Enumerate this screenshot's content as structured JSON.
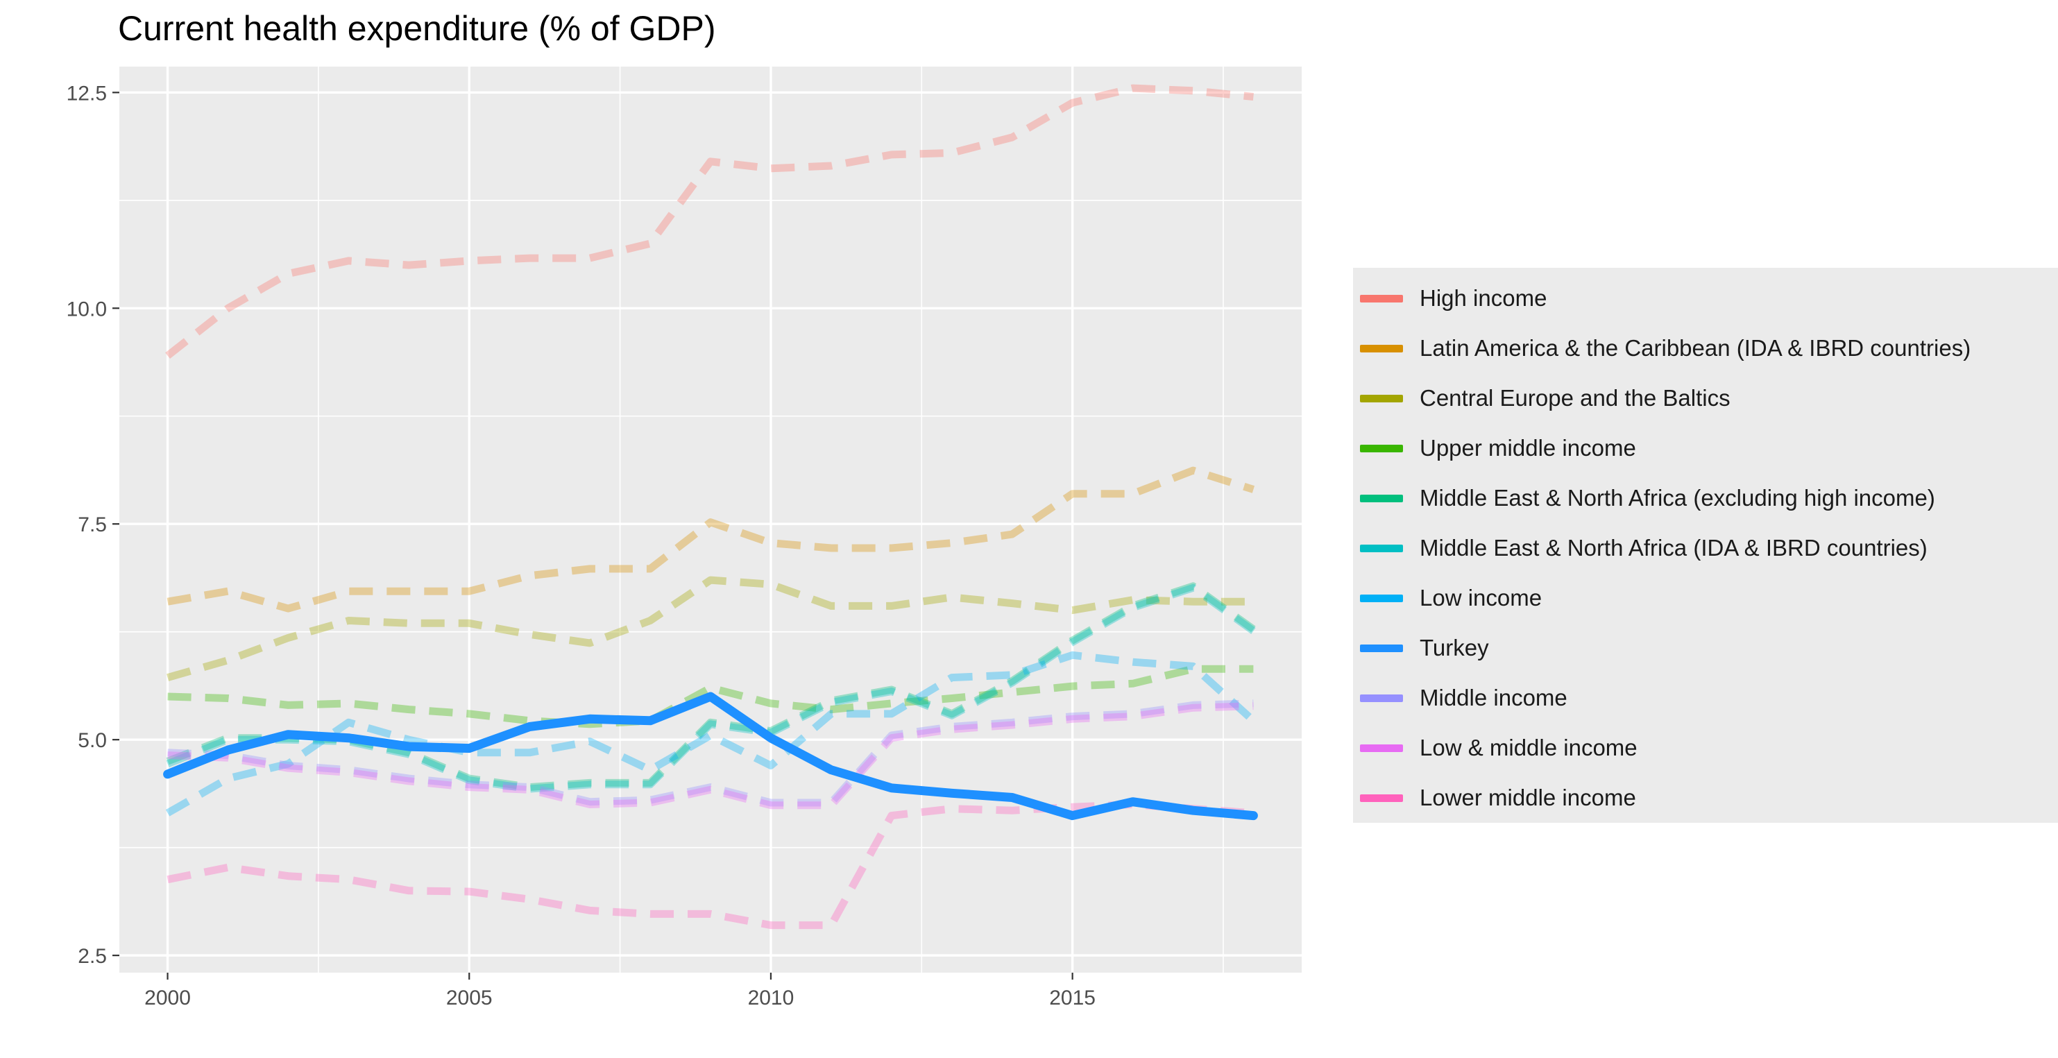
{
  "chart_data": {
    "type": "line",
    "title": "Current health expenditure (% of GDP)",
    "xlabel": "",
    "ylabel": "",
    "xlim": [
      1999.2,
      2018.8
    ],
    "ylim": [
      2.3,
      12.8
    ],
    "x_ticks": [
      2000,
      2005,
      2010,
      2015
    ],
    "y_ticks": [
      2.5,
      5.0,
      7.5,
      10.0,
      12.5
    ],
    "y_tick_labels": [
      "2.5",
      "5.0",
      "7.5",
      "10.0",
      "12.5"
    ],
    "grid": true,
    "legend_position": "right",
    "x": [
      2000,
      2001,
      2002,
      2003,
      2004,
      2005,
      2006,
      2007,
      2008,
      2009,
      2010,
      2011,
      2012,
      2013,
      2014,
      2015,
      2016,
      2017,
      2018
    ],
    "series": [
      {
        "name": "High income",
        "color": "#F8766D",
        "style": "dashed",
        "values": [
          9.45,
          10.0,
          10.4,
          10.55,
          10.5,
          10.55,
          10.58,
          10.58,
          10.75,
          11.7,
          11.62,
          11.65,
          11.78,
          11.8,
          11.98,
          12.38,
          12.55,
          12.52,
          12.45
        ]
      },
      {
        "name": "Latin America & the Caribbean (IDA & IBRD countries)",
        "color": "#D89000",
        "style": "dashed",
        "values": [
          6.6,
          6.72,
          6.52,
          6.72,
          6.72,
          6.72,
          6.9,
          6.98,
          6.98,
          7.52,
          7.28,
          7.22,
          7.22,
          7.28,
          7.38,
          7.85,
          7.85,
          8.12,
          7.9
        ]
      },
      {
        "name": "Central Europe and the Baltics",
        "color": "#A3A500",
        "style": "dashed",
        "values": [
          5.72,
          5.92,
          6.18,
          6.38,
          6.35,
          6.35,
          6.22,
          6.12,
          6.38,
          6.85,
          6.8,
          6.55,
          6.55,
          6.65,
          6.58,
          6.5,
          6.62,
          6.6,
          6.6
        ]
      },
      {
        "name": "Upper middle income",
        "color": "#39B600",
        "style": "dashed",
        "values": [
          5.5,
          5.48,
          5.4,
          5.42,
          5.35,
          5.3,
          5.22,
          5.18,
          5.22,
          5.6,
          5.42,
          5.35,
          5.42,
          5.48,
          5.55,
          5.62,
          5.65,
          5.82,
          5.82
        ]
      },
      {
        "name": "Middle East & North Africa (excluding high income)",
        "color": "#00BF7D",
        "style": "dashed",
        "values": [
          4.75,
          5.02,
          5.02,
          5.0,
          4.85,
          4.55,
          4.45,
          4.5,
          4.5,
          5.2,
          5.1,
          5.45,
          5.58,
          5.3,
          5.68,
          6.15,
          6.55,
          6.78,
          6.28
        ]
      },
      {
        "name": "Middle East & North Africa (IDA & IBRD countries)",
        "color": "#00BFC4",
        "style": "dashed",
        "values": [
          4.72,
          5.0,
          5.0,
          4.98,
          4.83,
          4.53,
          4.43,
          4.48,
          4.48,
          5.18,
          5.08,
          5.43,
          5.56,
          5.28,
          5.66,
          6.13,
          6.53,
          6.76,
          6.26
        ]
      },
      {
        "name": "Low income",
        "color": "#00B0F6",
        "style": "dashed",
        "values": [
          4.15,
          4.55,
          4.72,
          5.2,
          5.0,
          4.85,
          4.85,
          4.98,
          4.65,
          5.05,
          4.7,
          5.3,
          5.3,
          5.72,
          5.75,
          5.98,
          5.9,
          5.85,
          5.22
        ]
      },
      {
        "name": "Turkey",
        "color": "#1E90FF",
        "style": "solid",
        "values": [
          4.6,
          4.88,
          5.06,
          5.02,
          4.92,
          4.9,
          5.15,
          5.24,
          5.22,
          5.5,
          5.02,
          4.65,
          4.44,
          4.38,
          4.33,
          4.12,
          4.28,
          4.18,
          4.12
        ]
      },
      {
        "name": "Middle income",
        "color": "#9590FF",
        "style": "dashed",
        "values": [
          4.85,
          4.82,
          4.7,
          4.65,
          4.55,
          4.48,
          4.45,
          4.28,
          4.3,
          4.45,
          4.27,
          4.27,
          5.05,
          5.15,
          5.2,
          5.27,
          5.3,
          5.4,
          5.42
        ]
      },
      {
        "name": "Low & middle income",
        "color": "#E76BF3",
        "style": "dashed",
        "values": [
          4.82,
          4.79,
          4.67,
          4.62,
          4.52,
          4.45,
          4.42,
          4.25,
          4.27,
          4.42,
          4.24,
          4.24,
          5.02,
          5.12,
          5.17,
          5.24,
          5.27,
          5.37,
          5.39
        ]
      },
      {
        "name": "Lower middle income",
        "color": "#FF62BC",
        "style": "dashed",
        "values": [
          3.38,
          3.52,
          3.42,
          3.38,
          3.25,
          3.24,
          3.15,
          3.02,
          2.98,
          2.98,
          2.85,
          2.85,
          4.12,
          4.2,
          4.18,
          4.22,
          4.25,
          4.2,
          4.15
        ]
      }
    ]
  }
}
